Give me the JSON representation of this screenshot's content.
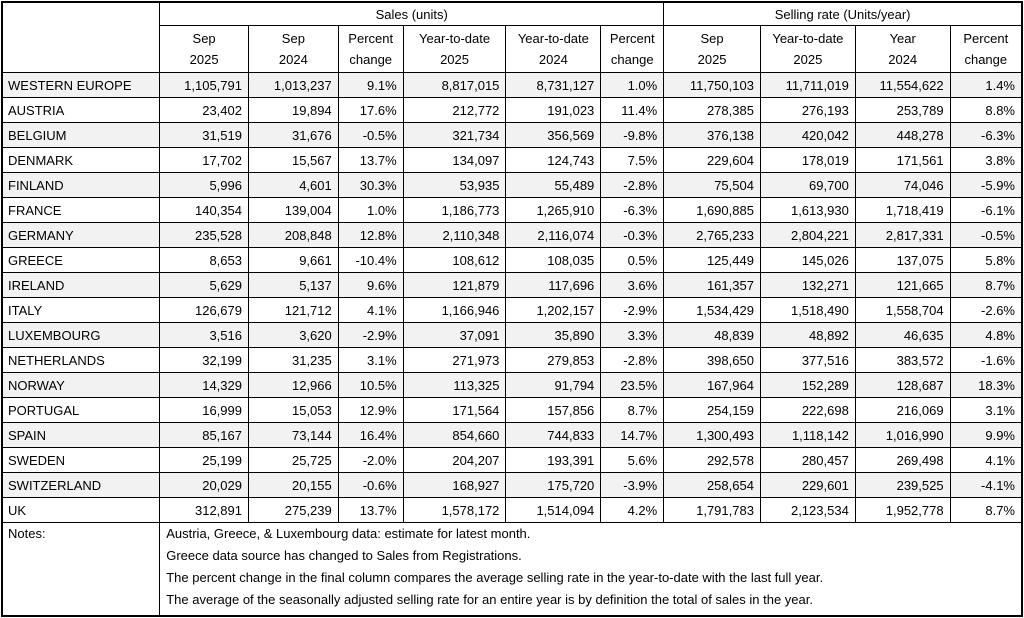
{
  "table": {
    "group_headers": [
      {
        "label": "Sales (units)",
        "colspan": 6
      },
      {
        "label": "Selling rate (Units/year)",
        "colspan": 4
      }
    ],
    "columns": [
      {
        "line1": "Sep",
        "line2": "2025"
      },
      {
        "line1": "Sep",
        "line2": "2024"
      },
      {
        "line1": "Percent",
        "line2": "change"
      },
      {
        "line1": "Year-to-date",
        "line2": "2025"
      },
      {
        "line1": "Year-to-date",
        "line2": "2024"
      },
      {
        "line1": "Percent",
        "line2": "change"
      },
      {
        "line1": "Sep",
        "line2": "2025"
      },
      {
        "line1": "Year-to-date",
        "line2": "2025"
      },
      {
        "line1": "Year",
        "line2": "2024"
      },
      {
        "line1": "Percent",
        "line2": "change"
      }
    ],
    "rows": [
      {
        "country": "WESTERN EUROPE",
        "values": [
          "1,105,791",
          "1,013,237",
          "9.1%",
          "8,817,015",
          "8,731,127",
          "1.0%",
          "11,750,103",
          "11,711,019",
          "11,554,622",
          "1.4%"
        ]
      },
      {
        "country": "AUSTRIA",
        "values": [
          "23,402",
          "19,894",
          "17.6%",
          "212,772",
          "191,023",
          "11.4%",
          "278,385",
          "276,193",
          "253,789",
          "8.8%"
        ]
      },
      {
        "country": "BELGIUM",
        "values": [
          "31,519",
          "31,676",
          "-0.5%",
          "321,734",
          "356,569",
          "-9.8%",
          "376,138",
          "420,042",
          "448,278",
          "-6.3%"
        ]
      },
      {
        "country": "DENMARK",
        "values": [
          "17,702",
          "15,567",
          "13.7%",
          "134,097",
          "124,743",
          "7.5%",
          "229,604",
          "178,019",
          "171,561",
          "3.8%"
        ]
      },
      {
        "country": "FINLAND",
        "values": [
          "5,996",
          "4,601",
          "30.3%",
          "53,935",
          "55,489",
          "-2.8%",
          "75,504",
          "69,700",
          "74,046",
          "-5.9%"
        ]
      },
      {
        "country": "FRANCE",
        "values": [
          "140,354",
          "139,004",
          "1.0%",
          "1,186,773",
          "1,265,910",
          "-6.3%",
          "1,690,885",
          "1,613,930",
          "1,718,419",
          "-6.1%"
        ]
      },
      {
        "country": "GERMANY",
        "values": [
          "235,528",
          "208,848",
          "12.8%",
          "2,110,348",
          "2,116,074",
          "-0.3%",
          "2,765,233",
          "2,804,221",
          "2,817,331",
          "-0.5%"
        ]
      },
      {
        "country": "GREECE",
        "values": [
          "8,653",
          "9,661",
          "-10.4%",
          "108,612",
          "108,035",
          "0.5%",
          "125,449",
          "145,026",
          "137,075",
          "5.8%"
        ]
      },
      {
        "country": "IRELAND",
        "values": [
          "5,629",
          "5,137",
          "9.6%",
          "121,879",
          "117,696",
          "3.6%",
          "161,357",
          "132,271",
          "121,665",
          "8.7%"
        ]
      },
      {
        "country": "ITALY",
        "values": [
          "126,679",
          "121,712",
          "4.1%",
          "1,166,946",
          "1,202,157",
          "-2.9%",
          "1,534,429",
          "1,518,490",
          "1,558,704",
          "-2.6%"
        ]
      },
      {
        "country": "LUXEMBOURG",
        "values": [
          "3,516",
          "3,620",
          "-2.9%",
          "37,091",
          "35,890",
          "3.3%",
          "48,839",
          "48,892",
          "46,635",
          "4.8%"
        ]
      },
      {
        "country": "NETHERLANDS",
        "values": [
          "32,199",
          "31,235",
          "3.1%",
          "271,973",
          "279,853",
          "-2.8%",
          "398,650",
          "377,516",
          "383,572",
          "-1.6%"
        ]
      },
      {
        "country": "NORWAY",
        "values": [
          "14,329",
          "12,966",
          "10.5%",
          "113,325",
          "91,794",
          "23.5%",
          "167,964",
          "152,289",
          "128,687",
          "18.3%"
        ]
      },
      {
        "country": "PORTUGAL",
        "values": [
          "16,999",
          "15,053",
          "12.9%",
          "171,564",
          "157,856",
          "8.7%",
          "254,159",
          "222,698",
          "216,069",
          "3.1%"
        ]
      },
      {
        "country": "SPAIN",
        "values": [
          "85,167",
          "73,144",
          "16.4%",
          "854,660",
          "744,833",
          "14.7%",
          "1,300,493",
          "1,118,142",
          "1,016,990",
          "9.9%"
        ]
      },
      {
        "country": "SWEDEN",
        "values": [
          "25,199",
          "25,725",
          "-2.0%",
          "204,207",
          "193,391",
          "5.6%",
          "292,578",
          "280,457",
          "269,498",
          "4.1%"
        ]
      },
      {
        "country": "SWITZERLAND",
        "values": [
          "20,029",
          "20,155",
          "-0.6%",
          "168,927",
          "175,720",
          "-3.9%",
          "258,654",
          "229,601",
          "239,525",
          "-4.1%"
        ]
      },
      {
        "country": "UK",
        "values": [
          "312,891",
          "275,239",
          "13.7%",
          "1,578,172",
          "1,514,094",
          "4.2%",
          "1,791,783",
          "2,123,534",
          "1,952,778",
          "8.7%"
        ]
      }
    ],
    "notes_label": "Notes:",
    "notes": [
      "Austria, Greece, & Luxembourg data: estimate for latest month.",
      "Greece data source has changed to Sales from Registrations.",
      "The percent change in the final column compares the average selling rate in the year-to-date with the last full year.",
      "The average of the seasonally adjusted selling rate for an entire year is by definition the total of sales in the year."
    ]
  }
}
